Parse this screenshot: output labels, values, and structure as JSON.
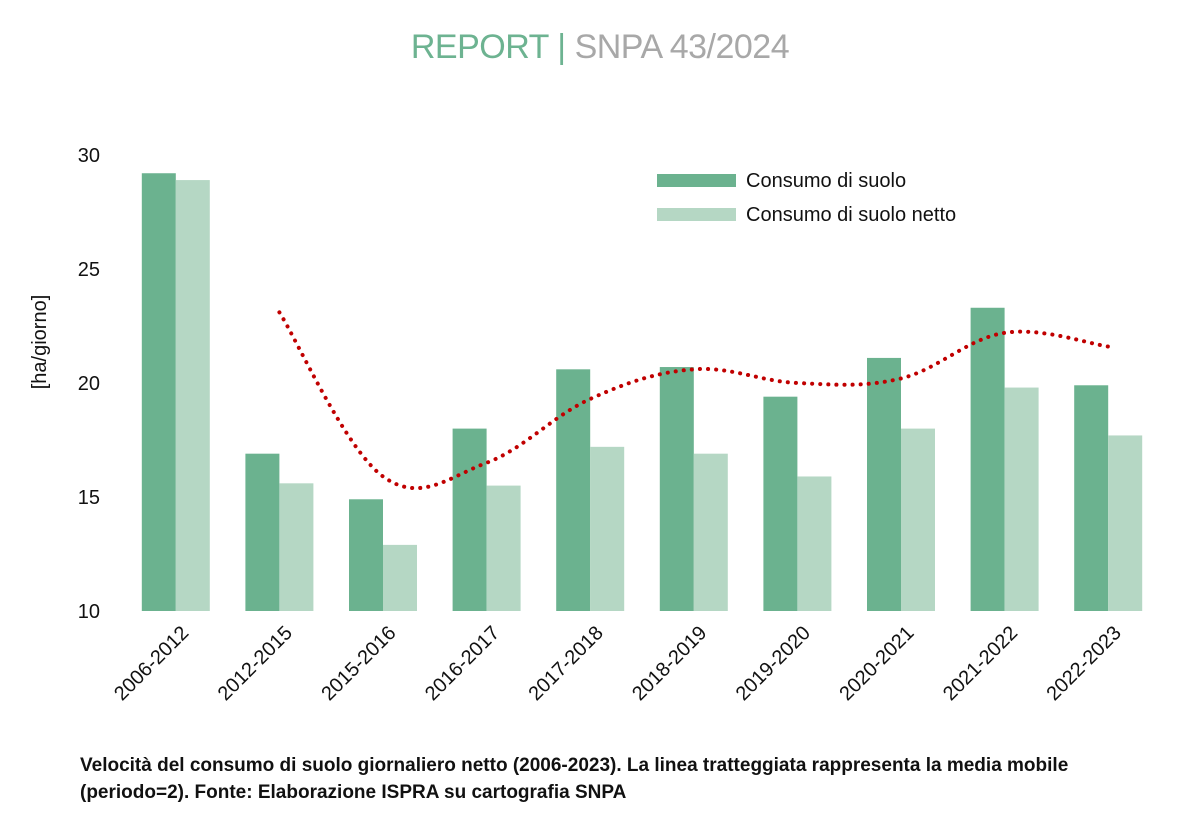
{
  "header": {
    "report_word": "REPORT",
    "separator": "|",
    "report_code": "SNPA 43/2024"
  },
  "caption": "Velocità del consumo di suolo giornaliero netto (2006-2023). La linea tratteggiata rappresenta la media mobile (periodo=2). Fonte: Elaborazione ISPRA su cartografia SNPA",
  "colors": {
    "series_dark": "#6bb28f",
    "series_light": "#b5d7c4",
    "moving_average": "#c00000",
    "header_green": "#6db391",
    "header_grey": "#a8a8a8"
  },
  "chart_data": {
    "type": "bar",
    "title": "",
    "xlabel": "",
    "ylabel": "[ha/giorno]",
    "ylim": [
      10,
      30
    ],
    "yticks": [
      10,
      15,
      20,
      25,
      30
    ],
    "grid": false,
    "legend_position": "top-right",
    "categories": [
      "2006-2012",
      "2012-2015",
      "2015-2016",
      "2016-2017",
      "2017-2018",
      "2018-2019",
      "2019-2020",
      "2020-2021",
      "2021-2022",
      "2022-2023"
    ],
    "series": [
      {
        "name": "Consumo di suolo",
        "type": "bar",
        "values": [
          29.2,
          16.9,
          14.9,
          18.0,
          20.6,
          20.7,
          19.4,
          21.1,
          23.3,
          19.9
        ]
      },
      {
        "name": "Consumo di suolo netto",
        "type": "bar",
        "values": [
          28.9,
          15.6,
          12.9,
          15.5,
          17.2,
          16.9,
          15.9,
          18.0,
          19.8,
          17.7
        ]
      },
      {
        "type": "line",
        "style": "dotted",
        "values": [
          null,
          23.1,
          15.9,
          16.5,
          19.3,
          20.6,
          20.0,
          20.2,
          22.2,
          21.6
        ]
      }
    ]
  }
}
